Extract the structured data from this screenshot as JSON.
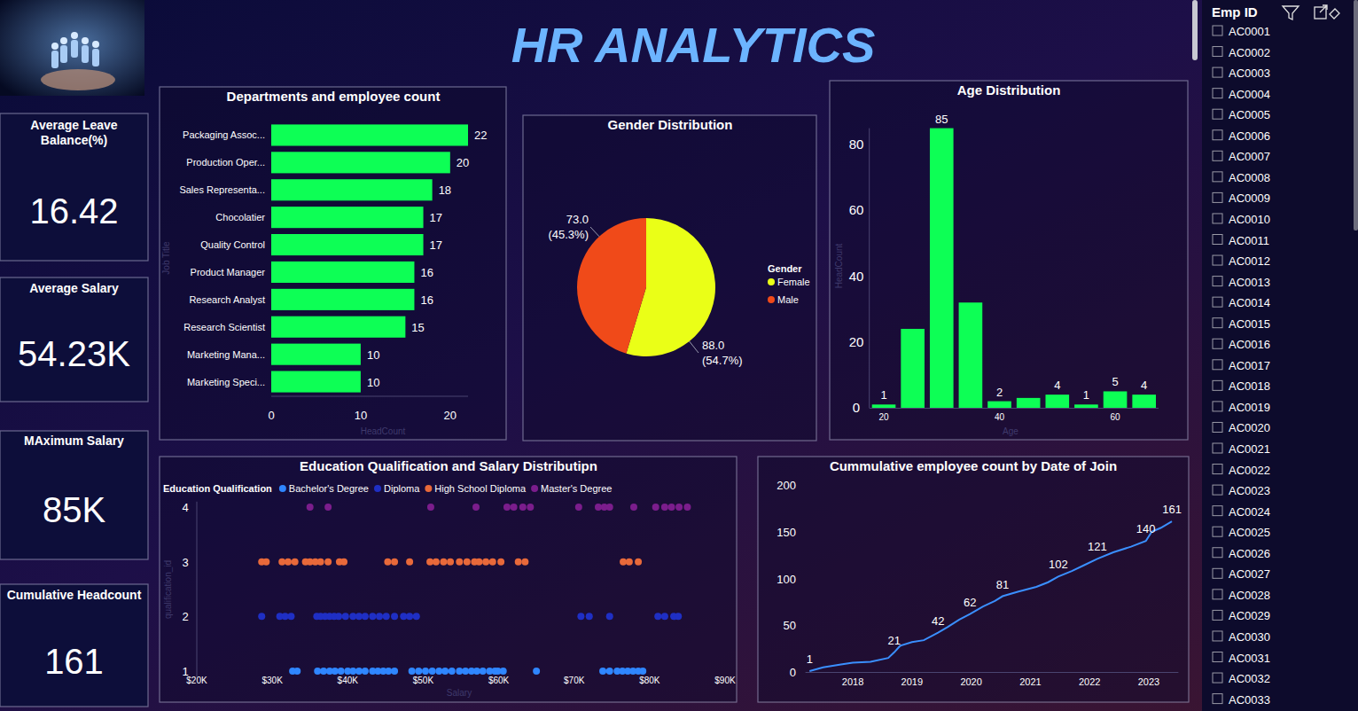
{
  "title": "HR ANALYTICS",
  "kpis": [
    {
      "label": "Average Leave Balance(%)",
      "value": "16.42"
    },
    {
      "label": "Average Salary",
      "value": "54.23K"
    },
    {
      "label": "MAximum Salary",
      "value": "85K"
    },
    {
      "label": "Cumulative Headcount",
      "value": "161"
    }
  ],
  "slicer": {
    "title": "Emp ID",
    "items": [
      "AC0001",
      "AC0002",
      "AC0003",
      "AC0004",
      "AC0005",
      "AC0006",
      "AC0007",
      "AC0008",
      "AC0009",
      "AC0010",
      "AC0011",
      "AC0012",
      "AC0013",
      "AC0014",
      "AC0015",
      "AC0016",
      "AC0017",
      "AC0018",
      "AC0019",
      "AC0020",
      "AC0021",
      "AC0022",
      "AC0023",
      "AC0024",
      "AC0025",
      "AC0026",
      "AC0027",
      "AC0028",
      "AC0029",
      "AC0030",
      "AC0031",
      "AC0032",
      "AC0033"
    ]
  },
  "chart_data": [
    {
      "type": "bar",
      "title": "Departments and employee count",
      "orientation": "horizontal",
      "categories": [
        "Packaging Assoc...",
        "Production Oper...",
        "Sales Representa...",
        "Chocolatier",
        "Quality Control",
        "Product Manager",
        "Research Analyst",
        "Research Scientist",
        "Marketing Mana...",
        "Marketing Speci..."
      ],
      "values": [
        22,
        20,
        18,
        17,
        17,
        16,
        16,
        15,
        10,
        10
      ],
      "color": "#0dff55",
      "xlim": [
        0,
        22
      ],
      "xticks": [
        0,
        10,
        20
      ],
      "xlabel": "HeadCount",
      "ylabel": "Job Title",
      "data_labels": true
    },
    {
      "type": "pie",
      "title": "Gender Distribution",
      "legend_title": "Gender",
      "legend": "right",
      "categories": [
        "Female",
        "Male"
      ],
      "values": [
        88,
        73
      ],
      "value_labels": [
        "88.0 (54.7%)",
        "73.0 (45.3%)"
      ],
      "colors": [
        "#eaff17",
        "#f04a19"
      ],
      "data_labels": true
    },
    {
      "type": "histogram",
      "title": "Age Distribution",
      "bins": [
        17.5,
        22.5,
        27.5,
        32.5,
        37.5,
        42.5,
        47.5,
        52.5,
        57.5,
        62.5,
        67.5
      ],
      "values": [
        1,
        24,
        85,
        32,
        2,
        3,
        4,
        1,
        5,
        4
      ],
      "value_labels": [
        "1",
        null,
        "85",
        null,
        "2",
        null,
        "4",
        "1",
        "5",
        "4"
      ],
      "color": "#0dff55",
      "xlim": [
        17.5,
        67.5
      ],
      "xticks": [
        20,
        40,
        60
      ],
      "ylim": [
        0,
        85
      ],
      "yticks": [
        0,
        20,
        40,
        60,
        80
      ],
      "xlabel": "Age",
      "ylabel": "HeadCount",
      "data_labels": true
    },
    {
      "type": "scatter",
      "title": "Education Qualification and Salary Distributipn",
      "legend_title": "Education Qualification",
      "legend": "top",
      "marker": "circle",
      "series": [
        {
          "name": "Bachelor's Degree",
          "color": "#2f86ff",
          "x": [
            32700,
            33300,
            36000,
            36800,
            37600,
            38300,
            39100,
            40000,
            40700,
            41500,
            42300,
            43300,
            44000,
            44700,
            45400,
            46200,
            48500,
            49400,
            50300,
            51200,
            52100,
            52900,
            53800,
            54800,
            55600,
            56400,
            57100,
            57900,
            58800,
            59500,
            59900,
            60600,
            65000,
            73800,
            74700,
            75700,
            76400,
            77100,
            77800,
            78500,
            79100
          ],
          "values": [
            1,
            1,
            1,
            1,
            1,
            1,
            1,
            1,
            1,
            1,
            1,
            1,
            1,
            1,
            1,
            1,
            1,
            1,
            1,
            1,
            1,
            1,
            1,
            1,
            1,
            1,
            1,
            1,
            1,
            1,
            1,
            1,
            1,
            1,
            1,
            1,
            1,
            1,
            1,
            1,
            1
          ]
        },
        {
          "name": "Diploma",
          "color": "#1f2fc4",
          "x": [
            28600,
            31000,
            31700,
            32500,
            35900,
            36400,
            37000,
            37600,
            38200,
            38800,
            39700,
            40700,
            41500,
            42300,
            43300,
            44200,
            45100,
            46200,
            47400,
            48200,
            49100,
            70900,
            72000,
            74700,
            81100,
            82000,
            83200,
            83800
          ],
          "values": [
            2,
            2,
            2,
            2,
            2,
            2,
            2,
            2,
            2,
            2,
            2,
            2,
            2,
            2,
            2,
            2,
            2,
            2,
            2,
            2,
            2,
            2,
            2,
            2,
            2,
            2,
            2,
            2
          ]
        },
        {
          "name": "High School Diploma",
          "color": "#e8693a",
          "x": [
            28600,
            29200,
            31300,
            32100,
            33000,
            34400,
            35000,
            35700,
            36400,
            37400,
            38900,
            39500,
            45300,
            46200,
            48200,
            50900,
            51700,
            52700,
            53600,
            54800,
            55800,
            56800,
            57400,
            58300,
            59200,
            60300,
            62600,
            63500,
            76500,
            77300,
            78500
          ],
          "values": [
            3,
            3,
            3,
            3,
            3,
            3,
            3,
            3,
            3,
            3,
            3,
            3,
            3,
            3,
            3,
            3,
            3,
            3,
            3,
            3,
            3,
            3,
            3,
            3,
            3,
            3,
            3,
            3,
            3,
            3,
            3
          ]
        },
        {
          "name": "Master's Degree",
          "color": "#7b1d8c",
          "x": [
            35000,
            37400,
            51000,
            57000,
            61100,
            62000,
            63200,
            64200,
            70600,
            73200,
            74000,
            74700,
            77900,
            80800,
            82000,
            82900,
            83900,
            85000
          ],
          "values": [
            4,
            4,
            4,
            4,
            4,
            4,
            4,
            4,
            4,
            4,
            4,
            4,
            4,
            4,
            4,
            4,
            4,
            4
          ]
        }
      ],
      "xlim": [
        20000,
        90000
      ],
      "xticks": [
        {
          "value": 20000,
          "label": "$20K"
        },
        {
          "value": 30000,
          "label": "$30K"
        },
        {
          "value": 40000,
          "label": "$40K"
        },
        {
          "value": 50000,
          "label": "$50K"
        },
        {
          "value": 60000,
          "label": "$60K"
        },
        {
          "value": 70000,
          "label": "$70K"
        },
        {
          "value": 80000,
          "label": "$80K"
        },
        {
          "value": 90000,
          "label": "$90K"
        }
      ],
      "ylim": [
        0.9,
        4.1
      ],
      "yticks": [
        1,
        2,
        3,
        4
      ],
      "xlabel": "Salary",
      "ylabel": "qualification_id"
    },
    {
      "type": "line",
      "title": "Cummulative employee count by Date of Join",
      "color": "#3a8fff",
      "x": [
        2017.27,
        2017.5,
        2017.8,
        2018.0,
        2018.3,
        2018.6,
        2018.7,
        2018.8,
        2019.0,
        2019.2,
        2019.44,
        2019.6,
        2019.8,
        2019.98,
        2020.2,
        2020.4,
        2020.53,
        2020.8,
        2021.1,
        2021.3,
        2021.47,
        2021.7,
        2021.9,
        2022.13,
        2022.4,
        2022.7,
        2022.95,
        2023.05,
        2023.2,
        2023.39
      ],
      "values": [
        1,
        5,
        8,
        10,
        11,
        15,
        21,
        28,
        32,
        34,
        42,
        48,
        56,
        62,
        70,
        76,
        81,
        86,
        91,
        96,
        102,
        108,
        114,
        121,
        128,
        134,
        140,
        150,
        154,
        161
      ],
      "value_labels": [
        "1",
        null,
        null,
        null,
        null,
        null,
        "21",
        null,
        null,
        null,
        "42",
        null,
        null,
        "62",
        null,
        null,
        "81",
        null,
        null,
        null,
        "102",
        null,
        null,
        "121",
        null,
        null,
        "140",
        null,
        null,
        "161"
      ],
      "xlim": [
        2017.2,
        2023.5
      ],
      "xticks": [
        2018,
        2019,
        2020,
        2021,
        2022,
        2023
      ],
      "ylim": [
        0,
        200
      ],
      "yticks": [
        0,
        50,
        100,
        150,
        200
      ],
      "data_labels": true
    }
  ]
}
